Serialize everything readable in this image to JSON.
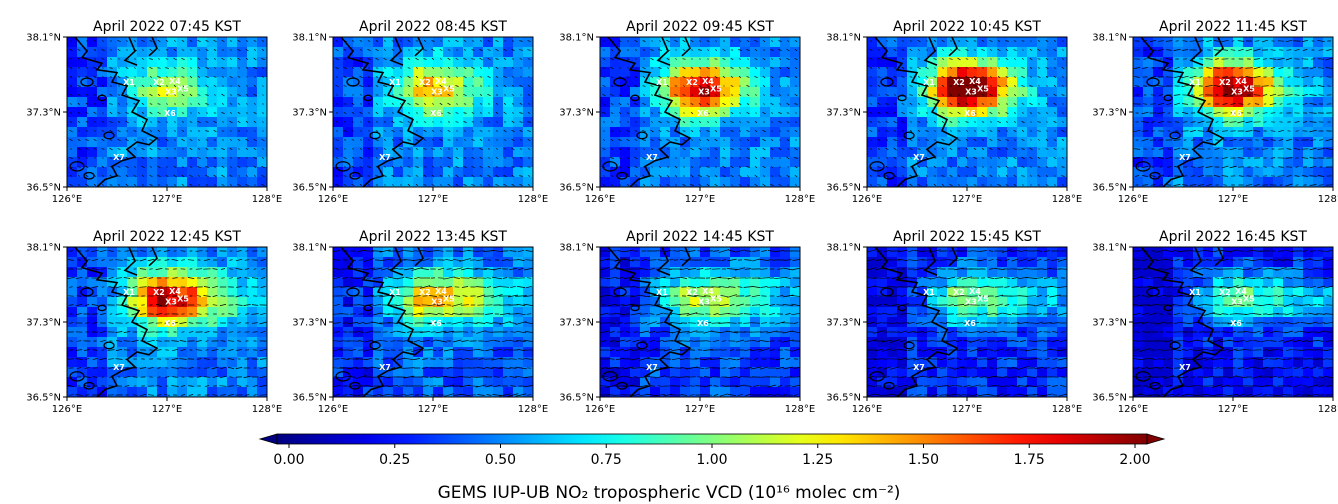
{
  "chart_data": {
    "type": "heatmap",
    "panels": [
      {
        "title": "April 2022 07:45 KST",
        "intensity": 0.35
      },
      {
        "title": "April 2022 08:45 KST",
        "intensity": 0.55
      },
      {
        "title": "April 2022 09:45 KST",
        "intensity": 0.8
      },
      {
        "title": "April 2022 10:45 KST",
        "intensity": 1.0
      },
      {
        "title": "April 2022 11:45 KST",
        "intensity": 0.9
      },
      {
        "title": "April 2022 12:45 KST",
        "intensity": 0.8
      },
      {
        "title": "April 2022 13:45 KST",
        "intensity": 0.55
      },
      {
        "title": "April 2022 14:45 KST",
        "intensity": 0.45
      },
      {
        "title": "April 2022 15:45 KST",
        "intensity": 0.4
      },
      {
        "title": "April 2022 16:45 KST",
        "intensity": 0.4
      }
    ],
    "x_ticks": [
      "126°E",
      "127°E",
      "128°E"
    ],
    "x_tick_values": [
      126,
      127,
      128
    ],
    "y_ticks": [
      "38.1°N",
      "37.3°N",
      "36.5°N"
    ],
    "y_tick_values": [
      38.1,
      37.3,
      36.5
    ],
    "xlim": [
      126,
      128
    ],
    "ylim": [
      36.5,
      38.1
    ],
    "sites": [
      {
        "label": "X1",
        "lon": 126.62,
        "lat": 37.62
      },
      {
        "label": "X2",
        "lon": 126.92,
        "lon2": 0,
        "lat": 37.62
      },
      {
        "label": "X3",
        "lon": 127.04,
        "lat": 37.52
      },
      {
        "label": "X4",
        "lon": 127.08,
        "lat": 37.63
      },
      {
        "label": "X5",
        "lon": 127.16,
        "lat": 37.55
      },
      {
        "label": "X6",
        "lon": 127.03,
        "lat": 37.29
      },
      {
        "label": "X7",
        "lon": 126.52,
        "lat": 36.82
      }
    ],
    "colorbar": {
      "label": "GEMS IUP-UB NO₂ tropospheric VCD (10¹⁶ molec cm⁻²)",
      "ticks": [
        "0.00",
        "0.25",
        "0.50",
        "0.75",
        "1.00",
        "1.25",
        "1.50",
        "1.75",
        "2.00"
      ],
      "tick_values": [
        0,
        0.25,
        0.5,
        0.75,
        1.0,
        1.25,
        1.5,
        1.75,
        2.0
      ],
      "range": [
        0,
        2
      ],
      "colormap": "jet",
      "extend": "both"
    }
  }
}
